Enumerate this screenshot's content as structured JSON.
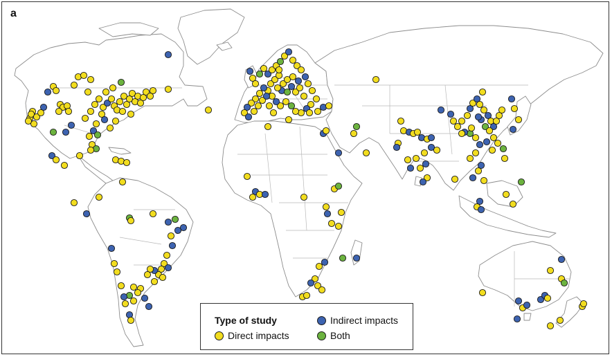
{
  "panel_label": "a",
  "legend": {
    "title": "Type of study",
    "items": [
      {
        "key": "direct",
        "label": "Direct impacts",
        "color": "#f2dd1f"
      },
      {
        "key": "indirect",
        "label": "Indirect impacts",
        "color": "#3d63b0"
      },
      {
        "key": "both",
        "label": "Both",
        "color": "#6cb33f"
      }
    ]
  },
  "colors": {
    "land_fill": "#ffffff",
    "coastline": "#8c8c8c",
    "border": "#b8b8b8"
  }
}
